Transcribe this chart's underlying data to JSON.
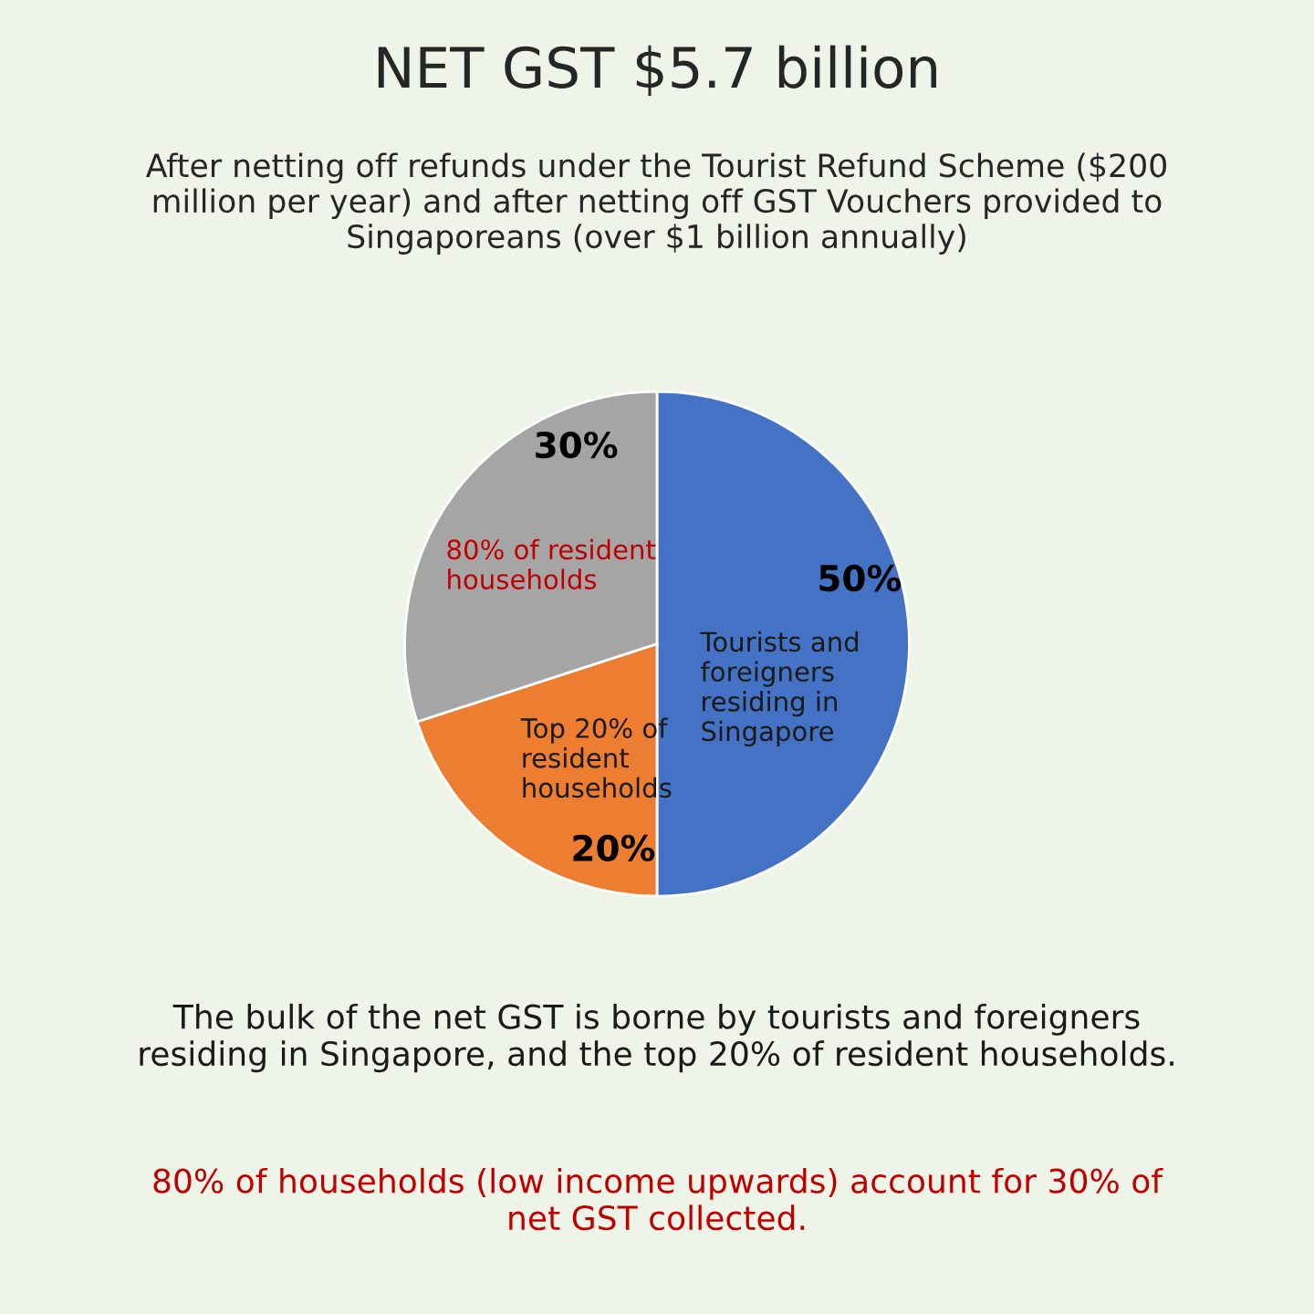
{
  "chart_data": {
    "type": "pie",
    "title": "NET GST $5.7 billion",
    "subtitle": "After netting off refunds under the Tourist Refund Scheme ($200 million per year) and after netting off GST Vouchers provided to Singaporeans (over $1 billion annually)",
    "categories": [
      "Tourists and foreigners residing in Singapore",
      "Top 20% of resident households",
      "80% of resident households"
    ],
    "values": [
      50,
      20,
      30
    ],
    "colors": [
      "#4472c4",
      "#ed7d31",
      "#a5a5a5"
    ],
    "value_labels": [
      "50%",
      "20%",
      "30%"
    ],
    "annotations": [
      "The bulk of the net GST is borne by tourists and foreigners residing in Singapore, and the top 20% of resident households.",
      "80% of households (low income upwards) account for 30% of net GST collected."
    ]
  }
}
